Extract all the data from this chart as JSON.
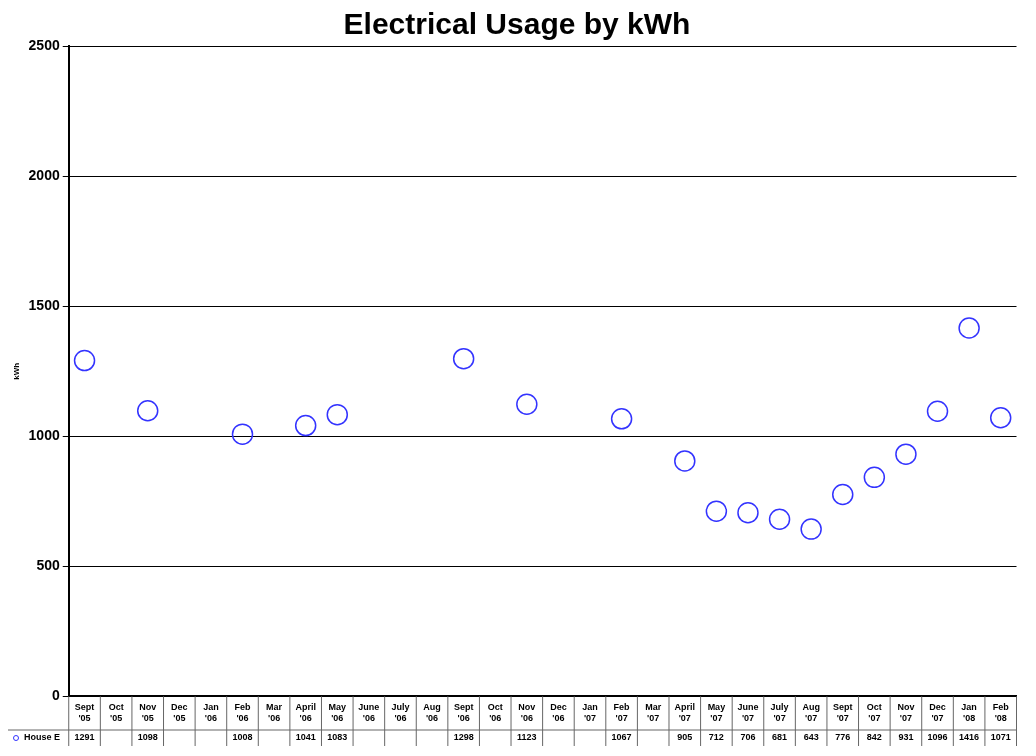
{
  "chart_data": {
    "type": "scatter",
    "title": "Electrical Usage by kWh",
    "ylabel": "kWh",
    "categories": [
      "Sept '05",
      "Oct '05",
      "Nov '05",
      "Dec '05",
      "Jan '06",
      "Feb '06",
      "Mar '06",
      "April '06",
      "May '06",
      "June '06",
      "July '06",
      "Aug '06",
      "Sept '06",
      "Oct '06",
      "Nov '06",
      "Dec '06",
      "Jan '07",
      "Feb '07",
      "Mar '07",
      "April '07",
      "May '07",
      "June '07",
      "July '07",
      "Aug '07",
      "Sept '07",
      "Oct '07",
      "Nov '07",
      "Dec '07",
      "Jan '08",
      "Feb '08"
    ],
    "series": [
      {
        "name": "House E",
        "color": "#3333ff",
        "values": [
          1291,
          null,
          1098,
          null,
          null,
          1008,
          null,
          1041,
          1083,
          null,
          null,
          null,
          1298,
          null,
          1123,
          null,
          null,
          1067,
          null,
          905,
          712,
          706,
          681,
          643,
          776,
          842,
          931,
          1096,
          1416,
          1071
        ]
      }
    ],
    "ylim": [
      0,
      2500
    ],
    "yticks": [
      0,
      500,
      1000,
      1500,
      2000,
      2500
    ],
    "grid": "y",
    "legend": "bottom",
    "marker": "circle",
    "data_labels": true
  }
}
